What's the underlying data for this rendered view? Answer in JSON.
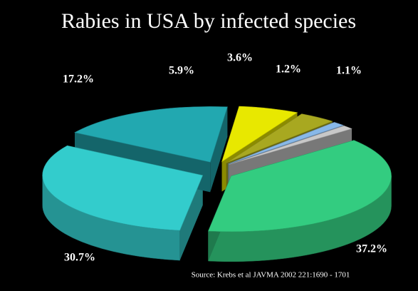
{
  "chart_data": {
    "type": "pie3d",
    "title": "Rabies in USA by infected species",
    "source": "Source: Krebs et al JAVMA 2002 221:1690 - 1701",
    "values": [
      37.2,
      30.7,
      17.2,
      5.9,
      3.6,
      1.2,
      1.1
    ],
    "value_labels": [
      "37.2%",
      "30.7%",
      "17.2%",
      "5.9%",
      "3.6%",
      "1.2%",
      "1.1%"
    ],
    "colors": [
      "#33cc80",
      "#33cccc",
      "#22a8b0",
      "#e8e800",
      "#a8a820",
      "#88b8e8",
      "#c8c8c8"
    ]
  }
}
